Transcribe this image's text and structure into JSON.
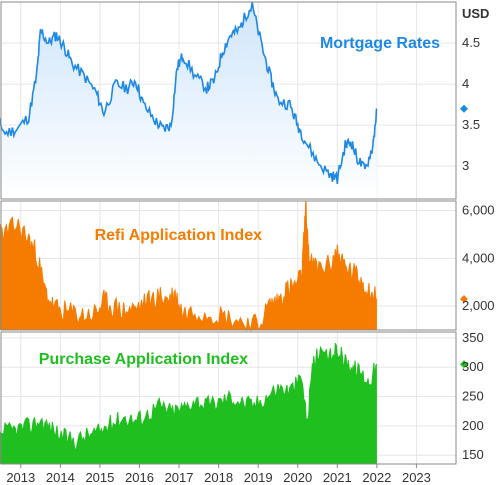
{
  "unit_label": "USD",
  "colors": {
    "mortgage": "#1e88e5",
    "mortgage_fill": "#cfe5fb",
    "refi": "#f57c00",
    "purchase": "#1fbf1f",
    "grid": "#e6e6e6",
    "frame": "#888888"
  },
  "chart_data": [
    {
      "type": "area",
      "title": "Mortgage Rates",
      "ylim": [
        2.6,
        5.0
      ],
      "y_ticks": [
        "3",
        "3.5",
        "4",
        "4.5"
      ],
      "last_marker": 3.7,
      "x": [
        2012.0,
        2012.3,
        2012.6,
        2012.9,
        2013.2,
        2013.4,
        2013.5,
        2013.7,
        2013.9,
        2014.1,
        2014.3,
        2014.6,
        2014.9,
        2015.1,
        2015.4,
        2015.7,
        2015.9,
        2016.1,
        2016.4,
        2016.6,
        2016.8,
        2016.95,
        2017.1,
        2017.4,
        2017.7,
        2017.9,
        2018.1,
        2018.3,
        2018.5,
        2018.7,
        2018.85,
        2019.1,
        2019.3,
        2019.5,
        2019.8,
        2020.0,
        2020.2,
        2020.5,
        2020.8,
        2021.0,
        2021.2,
        2021.35,
        2021.5,
        2021.7,
        2021.9,
        2022.0
      ],
      "values": [
        3.85,
        3.7,
        3.4,
        3.45,
        3.6,
        4.1,
        4.65,
        4.5,
        4.6,
        4.45,
        4.25,
        4.1,
        3.9,
        3.65,
        4.0,
        3.95,
        4.05,
        3.75,
        3.55,
        3.45,
        3.5,
        4.2,
        4.35,
        4.1,
        3.95,
        4.05,
        4.4,
        4.6,
        4.65,
        4.85,
        4.95,
        4.45,
        4.1,
        3.8,
        3.75,
        3.5,
        3.3,
        3.05,
        2.9,
        2.85,
        3.25,
        3.3,
        3.1,
        2.95,
        3.25,
        3.7
      ]
    },
    {
      "type": "area",
      "title": "Refi Application Index",
      "ylim": [
        1000,
        6400
      ],
      "y_ticks": [
        "2,000",
        "4,000",
        "6,000"
      ],
      "last_marker": 2300,
      "x": [
        2012.0,
        2012.3,
        2012.6,
        2012.9,
        2013.2,
        2013.4,
        2013.6,
        2013.8,
        2014.0,
        2014.3,
        2014.6,
        2014.9,
        2015.1,
        2015.3,
        2015.6,
        2015.9,
        2016.2,
        2016.5,
        2016.7,
        2016.9,
        2017.1,
        2017.5,
        2017.9,
        2018.3,
        2018.7,
        2019.0,
        2019.3,
        2019.5,
        2019.7,
        2019.9,
        2020.1,
        2020.2,
        2020.3,
        2020.5,
        2020.8,
        2021.0,
        2021.2,
        2021.4,
        2021.6,
        2021.8,
        2022.0
      ],
      "values": [
        4700,
        5200,
        5000,
        5400,
        4800,
        4200,
        2700,
        2000,
        1800,
        1700,
        1600,
        1700,
        2200,
        2000,
        1800,
        1900,
        2200,
        2400,
        2300,
        2500,
        1700,
        1800,
        1700,
        1500,
        1300,
        1200,
        2100,
        2200,
        2700,
        2800,
        3200,
        6200,
        3800,
        3600,
        3700,
        4300,
        3600,
        3400,
        3100,
        2700,
        2300
      ]
    },
    {
      "type": "area",
      "title": "Purchase Application Index",
      "ylim": [
        135,
        360
      ],
      "y_ticks": [
        "150",
        "200",
        "250",
        "300",
        "350"
      ],
      "last_marker": 305,
      "x": [
        2012.0,
        2012.3,
        2012.6,
        2012.9,
        2013.2,
        2013.5,
        2013.8,
        2014.1,
        2014.4,
        2014.7,
        2015.0,
        2015.3,
        2015.6,
        2015.9,
        2016.2,
        2016.5,
        2016.8,
        2017.1,
        2017.4,
        2017.7,
        2018.0,
        2018.3,
        2018.6,
        2018.9,
        2019.2,
        2019.5,
        2019.8,
        2020.1,
        2020.25,
        2020.35,
        2020.5,
        2020.8,
        2021.0,
        2021.2,
        2021.4,
        2021.6,
        2021.8,
        2022.0
      ],
      "values": [
        185,
        180,
        190,
        195,
        200,
        210,
        195,
        180,
        175,
        185,
        190,
        205,
        215,
        210,
        220,
        235,
        225,
        230,
        245,
        235,
        240,
        250,
        240,
        235,
        250,
        265,
        260,
        280,
        200,
        300,
        320,
        315,
        330,
        310,
        300,
        290,
        275,
        305
      ]
    }
  ],
  "x_axis": {
    "xlim": [
      2012.5,
      2024.0
    ],
    "ticks": [
      "2013",
      "2014",
      "2015",
      "2016",
      "2017",
      "2018",
      "2019",
      "2020",
      "2021",
      "2022",
      "2023"
    ]
  }
}
